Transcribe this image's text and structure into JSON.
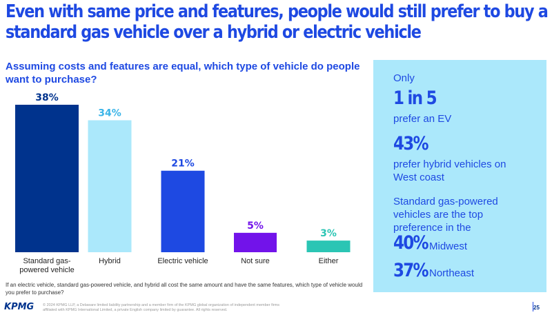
{
  "title": {
    "line1": "Even with same price and features, people would still prefer to buy a",
    "line2": "standard gas vehicle over a hybrid or electric vehicle"
  },
  "subtitle": "Assuming costs and features are equal, which type of vehicle do people want to purchase?",
  "chart_data": {
    "type": "bar",
    "title": "Assuming costs and features are equal, which type of vehicle do people want to purchase?",
    "categories": [
      "Standard gas-powered vehicle",
      "Hybrid",
      "Electric vehicle",
      "Not sure",
      "Either"
    ],
    "values": [
      38,
      34,
      21,
      5,
      3
    ],
    "data_labels": [
      "38%",
      "34%",
      "21%",
      "5%",
      "3%"
    ],
    "colors": [
      "#00338d",
      "#abe8fb",
      "#1e49e2",
      "#7213ea",
      "#2bc5b4"
    ],
    "label_colors": [
      "#00338d",
      "#3ab4e8",
      "#1e49e2",
      "#7213ea",
      "#2bc5b4"
    ],
    "ylim": [
      0,
      40
    ],
    "grid": false,
    "xlabel": "",
    "ylabel": ""
  },
  "footnote": "If an electric vehicle, standard gas-powered vehicle, and hybrid all cost the same amount and have the same features, which type of vehicle would you prefer to purchase?",
  "panel": {
    "only": "Only",
    "stat1": "1 in 5",
    "stat1_text": "prefer an EV",
    "stat2": "43%",
    "stat2_text": "prefer hybrid vehicles on West coast",
    "gas_text": "Standard gas-powered vehicles are the top preference in the",
    "stat3": "40%",
    "stat3_text": "Midwest",
    "stat4": "37%",
    "stat4_text": "Northeast"
  },
  "footer": {
    "logo": "KPMG",
    "legal": "© 2024 KPMG LLP, a Delaware limited liability partnership and a member firm of the KPMG global organization of independent member firms affiliated with KPMG International Limited, a private English company limited by guarantee. All rights reserved.",
    "page": "25"
  }
}
